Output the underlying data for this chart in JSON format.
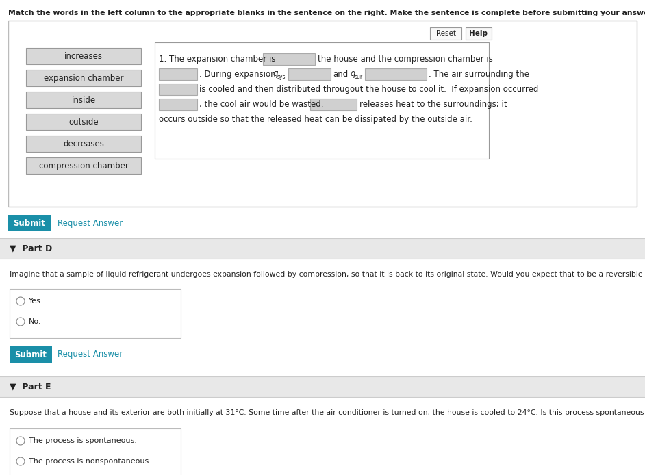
{
  "bg_color": "#ffffff",
  "page_bg": "#f5f5f5",
  "header_text": "Match the words in the left column to the appropriate blanks in the sentence on the right. Make the sentence is complete before submitting your answer.",
  "left_words": [
    "increases",
    "expansion chamber",
    "inside",
    "outside",
    "decreases",
    "compression chamber"
  ],
  "reset_btn": "Reset",
  "help_btn": "Help",
  "submit_color": "#1a8fa8",
  "submit_text": "Submit",
  "request_answer_text": "Request Answer",
  "partD_label": "Part D",
  "partD_question": "Imagine that a sample of liquid refrigerant undergoes expansion followed by compression, so that it is back to its original state. Would you expect that to be a reversible process?",
  "partD_options": [
    "Yes.",
    "No."
  ],
  "partE_label": "Part E",
  "partE_question": "Suppose that a house and its exterior are both initially at 31°C. Some time after the air conditioner is turned on, the house is cooled to 24°C. Is this process spontaneous or nonspontaneous?",
  "partE_options": [
    "The process is spontaneous.",
    "The process is nonspontaneous."
  ],
  "word_btn_color": "#d8d8d8",
  "word_btn_edge": "#999999",
  "blank_color": "#d0d0d0",
  "blank_edge": "#aaaaaa",
  "section_header_bg": "#e0e0e0",
  "white": "#ffffff",
  "text_dark": "#222222",
  "link_color": "#1a8fa8"
}
